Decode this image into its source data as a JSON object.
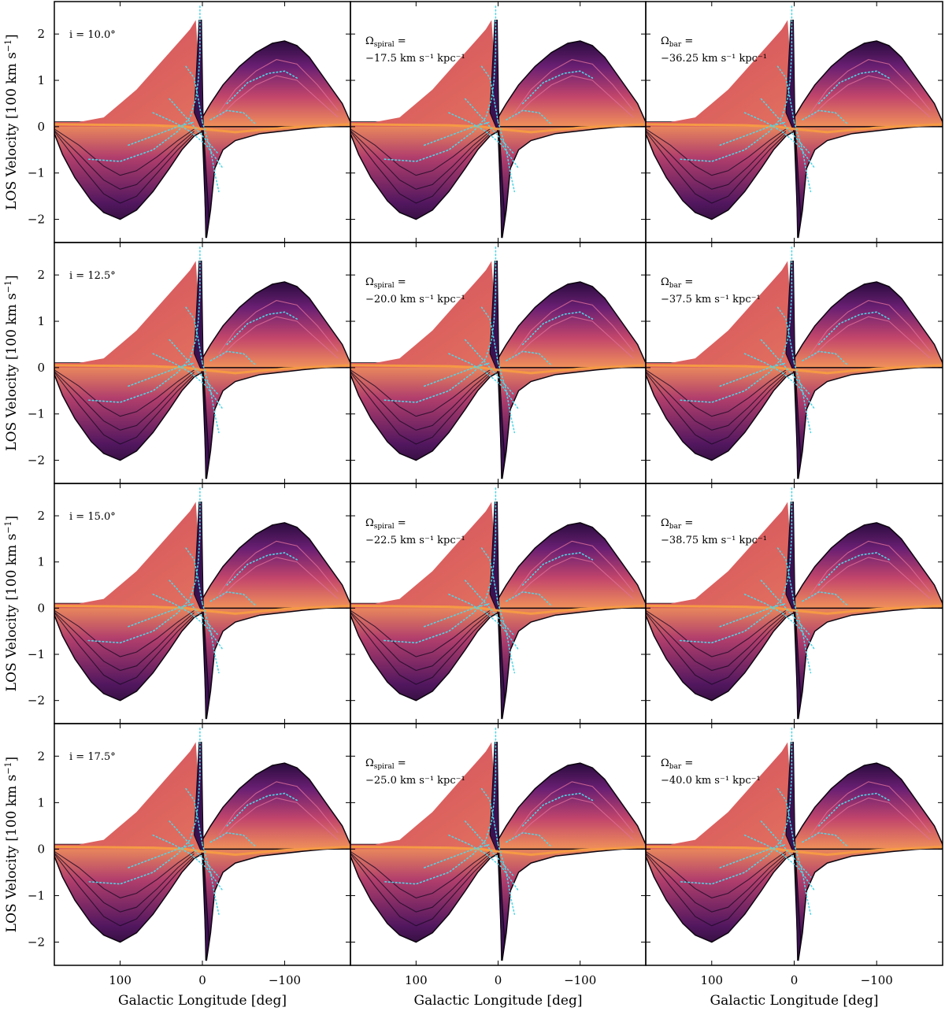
{
  "chart_data": {
    "type": "heatmap",
    "description": "Grid of 4x3 longitude-velocity diagrams (LOS velocity vs galactic longitude). Rows vary inclination; columns: baseline, spiral pattern speed, bar pattern speed.",
    "xlabel": "Galactic Longitude [deg]",
    "ylabel": "LOS Velocity [100 km s",
    "ylabel_sup": "−1",
    "ylabel_close": "]",
    "xlim": [
      180,
      -180
    ],
    "ylim": [
      -2.5,
      2.7
    ],
    "xticks": [
      100,
      0,
      -100
    ],
    "xtick_labels": [
      "100",
      "0",
      "−100"
    ],
    "yticks": [
      2,
      1,
      0,
      -1,
      -2
    ],
    "ytick_labels": [
      "2",
      "1",
      "0",
      "−1",
      "−2"
    ],
    "colormap": "inferno",
    "overlay_color": "#4fd6e8",
    "rows": [
      {
        "inclination": "i = 10.0°",
        "spiral": "−17.5 km s⁻¹ kpc⁻¹",
        "bar": "−36.25 km s⁻¹ kpc⁻¹"
      },
      {
        "inclination": "i = 12.5°",
        "spiral": "−20.0 km s⁻¹ kpc⁻¹",
        "bar": "−37.5 km s⁻¹ kpc⁻¹"
      },
      {
        "inclination": "i = 15.0°",
        "spiral": "−22.5 km s⁻¹ kpc⁻¹",
        "bar": "−38.75 km s⁻¹ kpc⁻¹"
      },
      {
        "inclination": "i = 17.5°",
        "spiral": "−25.0 km s⁻¹ kpc⁻¹",
        "bar": "−40.0 km s⁻¹ kpc⁻¹"
      }
    ],
    "annotations": {
      "omega_symbol": "Ω",
      "spiral_sub": "spiral",
      "bar_sub": "bar",
      "equals": " ="
    },
    "envelope": {
      "upper_positive": [
        [
          180,
          0.1
        ],
        [
          150,
          0.1
        ],
        [
          120,
          0.2
        ],
        [
          100,
          0.5
        ],
        [
          80,
          0.8
        ],
        [
          60,
          1.2
        ],
        [
          40,
          1.6
        ],
        [
          25,
          1.9
        ],
        [
          15,
          2.1
        ],
        [
          8,
          2.3
        ],
        [
          3,
          1.0
        ],
        [
          0,
          0.2
        ]
      ],
      "upper_negative": [
        [
          0,
          0.2
        ],
        [
          -10,
          0.5
        ],
        [
          -25,
          0.9
        ],
        [
          -45,
          1.3
        ],
        [
          -65,
          1.6
        ],
        [
          -85,
          1.8
        ],
        [
          -100,
          1.85
        ],
        [
          -115,
          1.75
        ],
        [
          -130,
          1.5
        ],
        [
          -150,
          1.0
        ],
        [
          -170,
          0.5
        ],
        [
          -180,
          0.1
        ]
      ],
      "lower_positive": [
        [
          180,
          -0.15
        ],
        [
          170,
          -0.6
        ],
        [
          155,
          -1.1
        ],
        [
          135,
          -1.6
        ],
        [
          120,
          -1.85
        ],
        [
          100,
          -2.0
        ],
        [
          80,
          -1.8
        ],
        [
          60,
          -1.4
        ],
        [
          40,
          -0.9
        ],
        [
          25,
          -0.5
        ],
        [
          10,
          -0.2
        ],
        [
          0,
          -0.1
        ]
      ],
      "lower_negative": [
        [
          0,
          -0.1
        ],
        [
          -5,
          -2.4
        ],
        [
          -10,
          -1.8
        ],
        [
          -15,
          -0.9
        ],
        [
          -25,
          -0.5
        ],
        [
          -40,
          -0.3
        ],
        [
          -70,
          -0.15
        ],
        [
          -120,
          -0.05
        ],
        [
          -180,
          0.05
        ]
      ]
    },
    "inner_curves": [
      [
        [
          180,
          -0.1
        ],
        [
          150,
          -0.8
        ],
        [
          120,
          -1.45
        ],
        [
          100,
          -1.65
        ],
        [
          80,
          -1.5
        ],
        [
          55,
          -1.0
        ],
        [
          30,
          -0.5
        ],
        [
          10,
          -0.15
        ]
      ],
      [
        [
          180,
          -0.08
        ],
        [
          150,
          -0.6
        ],
        [
          120,
          -1.15
        ],
        [
          100,
          -1.35
        ],
        [
          80,
          -1.25
        ],
        [
          55,
          -0.85
        ],
        [
          30,
          -0.4
        ],
        [
          10,
          -0.1
        ]
      ],
      [
        [
          180,
          -0.05
        ],
        [
          150,
          -0.4
        ],
        [
          120,
          -0.85
        ],
        [
          100,
          -1.05
        ],
        [
          80,
          -0.95
        ],
        [
          55,
          -0.65
        ],
        [
          30,
          -0.3
        ],
        [
          10,
          -0.05
        ]
      ],
      [
        [
          -20,
          0.3
        ],
        [
          -40,
          0.8
        ],
        [
          -65,
          1.2
        ],
        [
          -90,
          1.45
        ],
        [
          -115,
          1.35
        ],
        [
          -140,
          0.9
        ],
        [
          -165,
          0.35
        ]
      ],
      [
        [
          -20,
          0.2
        ],
        [
          -40,
          0.55
        ],
        [
          -65,
          0.9
        ],
        [
          -90,
          1.1
        ],
        [
          -115,
          1.0
        ],
        [
          -140,
          0.6
        ],
        [
          -165,
          0.2
        ]
      ]
    ],
    "overlay_curves": [
      [
        [
          3,
          2.6
        ],
        [
          3,
          1.6
        ],
        [
          5,
          1.0
        ],
        [
          8,
          0.6
        ],
        [
          15,
          0.2
        ],
        [
          30,
          -0.1
        ],
        [
          60,
          -0.5
        ],
        [
          100,
          -0.75
        ],
        [
          140,
          -0.7
        ]
      ],
      [
        [
          0,
          0.1
        ],
        [
          -10,
          -0.5
        ],
        [
          -15,
          -1.0
        ],
        [
          -20,
          -1.4
        ]
      ],
      [
        [
          -30,
          0.5
        ],
        [
          -55,
          0.95
        ],
        [
          -80,
          1.15
        ],
        [
          -100,
          1.2
        ],
        [
          -115,
          1.05
        ]
      ],
      [
        [
          -10,
          0.15
        ],
        [
          -30,
          0.35
        ],
        [
          -50,
          0.3
        ],
        [
          -65,
          0.05
        ]
      ],
      [
        [
          40,
          0.6
        ],
        [
          25,
          0.3
        ],
        [
          10,
          0.0
        ],
        [
          -5,
          -0.3
        ],
        [
          -20,
          -0.6
        ]
      ],
      [
        [
          60,
          0.3
        ],
        [
          35,
          0.1
        ],
        [
          15,
          -0.1
        ],
        [
          -5,
          -0.4
        ],
        [
          -25,
          -0.9
        ]
      ],
      [
        [
          90,
          -0.4
        ],
        [
          60,
          -0.2
        ],
        [
          30,
          0.0
        ],
        [
          10,
          0.1
        ]
      ],
      [
        [
          20,
          1.3
        ],
        [
          10,
          1.05
        ],
        [
          5,
          0.6
        ],
        [
          0,
          0.1
        ]
      ]
    ]
  }
}
